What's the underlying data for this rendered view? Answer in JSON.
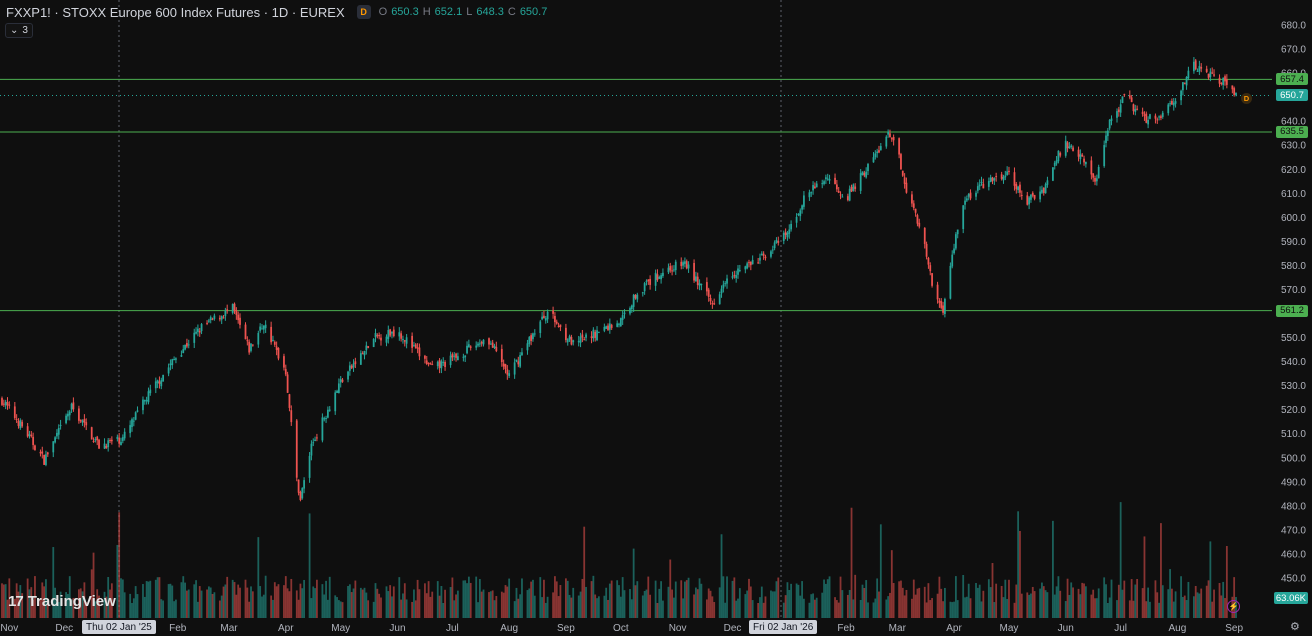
{
  "header": {
    "title": "FXXP1! · STOXX Europe 600 Index Futures · 1D · EUREX",
    "session_badge": "D",
    "ohlc": {
      "o_label": "O",
      "o": "650.3",
      "h_label": "H",
      "h": "652.1",
      "l_label": "L",
      "l": "648.3",
      "c_label": "C",
      "c": "650.7"
    }
  },
  "indicator_toggle": {
    "count": "3"
  },
  "logo": {
    "text": "TradingView",
    "mark": "17"
  },
  "price_axis": {
    "ticks": [
      "680.0",
      "670.0",
      "660.0",
      "650.0",
      "640.0",
      "630.0",
      "620.0",
      "610.0",
      "600.0",
      "590.0",
      "580.0",
      "570.0",
      "560.0",
      "550.0",
      "540.0",
      "530.0",
      "520.0",
      "510.0",
      "500.0",
      "490.0",
      "480.0",
      "470.0",
      "460.0",
      "450.0"
    ],
    "tags": [
      {
        "label": "657.4",
        "value": 657.4,
        "type": "line"
      },
      {
        "label": "650.7",
        "value": 650.7,
        "type": "last"
      },
      {
        "label": "635.5",
        "value": 635.5,
        "type": "line"
      },
      {
        "label": "561.2",
        "value": 561.2,
        "type": "line"
      }
    ],
    "volume_tag": "63.06K"
  },
  "time_axis": {
    "labels": [
      "Nov",
      "Dec",
      "Feb",
      "Mar",
      "Apr",
      "May",
      "Jun",
      "Jul",
      "Aug",
      "Sep",
      "Oct",
      "Nov",
      "Dec",
      "Feb",
      "Mar",
      "Apr",
      "May",
      "Jun",
      "Jul",
      "Aug",
      "Sep"
    ],
    "highlighted": [
      "Thu 02 Jan '25",
      "Fri 02 Jan '26"
    ]
  },
  "marker": {
    "label": "D"
  },
  "colors": {
    "up": "#26a69a",
    "down": "#ef5350",
    "hline": "#4caf50",
    "background": "#0f0f0f"
  },
  "chart_data": {
    "type": "candlestick",
    "symbol": "FXXP1!",
    "interval": "1D",
    "y_range": [
      450,
      685
    ],
    "horizontal_lines": [
      657.4,
      635.5,
      561.2
    ],
    "last_price": 650.7,
    "grid": false,
    "anchors": [
      [
        "2024-10-28",
        524
      ],
      [
        "2024-11-08",
        513
      ],
      [
        "2024-11-20",
        499
      ],
      [
        "2024-12-05",
        521
      ],
      [
        "2024-12-20",
        505
      ],
      [
        "2025-01-02",
        508
      ],
      [
        "2025-01-15",
        525
      ],
      [
        "2025-02-01",
        543
      ],
      [
        "2025-02-15",
        555
      ],
      [
        "2025-03-03",
        562
      ],
      [
        "2025-03-12",
        545
      ],
      [
        "2025-03-20",
        556
      ],
      [
        "2025-04-01",
        536
      ],
      [
        "2025-04-07",
        491
      ],
      [
        "2025-04-09",
        483
      ],
      [
        "2025-04-15",
        505
      ],
      [
        "2025-05-01",
        532
      ],
      [
        "2025-05-20",
        550
      ],
      [
        "2025-06-01",
        553
      ],
      [
        "2025-06-20",
        537
      ],
      [
        "2025-07-01",
        541
      ],
      [
        "2025-07-20",
        550
      ],
      [
        "2025-08-01",
        534
      ],
      [
        "2025-08-12",
        549
      ],
      [
        "2025-08-22",
        561
      ],
      [
        "2025-09-05",
        547
      ],
      [
        "2025-09-20",
        553
      ],
      [
        "2025-10-01",
        557
      ],
      [
        "2025-10-10",
        569
      ],
      [
        "2025-10-25",
        578
      ],
      [
        "2025-11-05",
        581
      ],
      [
        "2025-11-12",
        573
      ],
      [
        "2025-11-20",
        564
      ],
      [
        "2025-11-28",
        576
      ],
      [
        "2025-12-15",
        582
      ],
      [
        "2025-12-31",
        593
      ],
      [
        "2026-01-10",
        609
      ],
      [
        "2026-01-22",
        617
      ],
      [
        "2026-02-01",
        608
      ],
      [
        "2026-02-12",
        620
      ],
      [
        "2026-02-24",
        634
      ],
      [
        "2026-03-01",
        628
      ],
      [
        "2026-03-07",
        609
      ],
      [
        "2026-03-14",
        595
      ],
      [
        "2026-03-21",
        568
      ],
      [
        "2026-03-26",
        562
      ],
      [
        "2026-04-01",
        588
      ],
      [
        "2026-04-05",
        605
      ],
      [
        "2026-04-15",
        613
      ],
      [
        "2026-05-01",
        618
      ],
      [
        "2026-05-10",
        606
      ],
      [
        "2026-05-20",
        612
      ],
      [
        "2026-05-31",
        631
      ],
      [
        "2026-06-10",
        626
      ],
      [
        "2026-06-17",
        614
      ],
      [
        "2026-06-24",
        638
      ],
      [
        "2026-07-04",
        651
      ],
      [
        "2026-07-12",
        641
      ],
      [
        "2026-07-22",
        642
      ],
      [
        "2026-08-01",
        651
      ],
      [
        "2026-08-10",
        663
      ],
      [
        "2026-08-20",
        659
      ],
      [
        "2026-08-28",
        656
      ],
      [
        "2026-09-02",
        650
      ]
    ],
    "volume_max": 100
  }
}
